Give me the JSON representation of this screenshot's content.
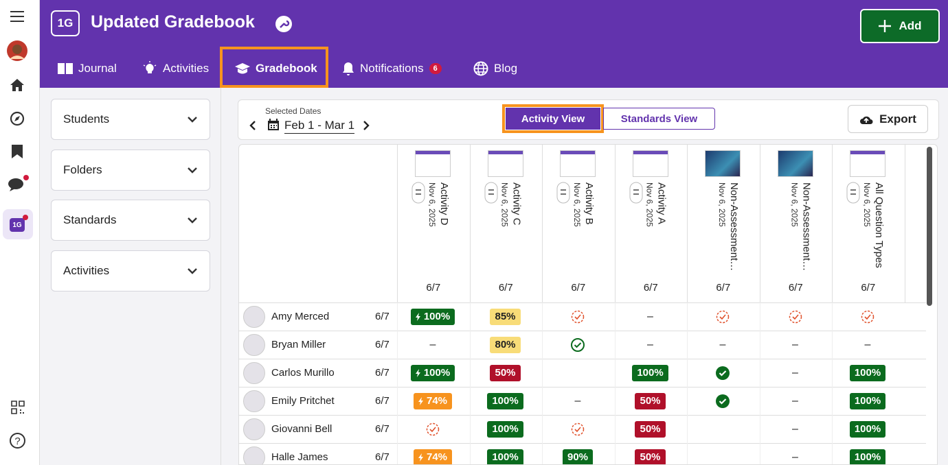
{
  "header": {
    "badge": "1G",
    "title": "Updated Gradebook",
    "add_button": "Add"
  },
  "nav": [
    {
      "label": "Journal"
    },
    {
      "label": "Activities"
    },
    {
      "label": "Gradebook"
    },
    {
      "label": "Notifications",
      "badge": 6
    },
    {
      "label": "Blog"
    }
  ],
  "rail": {
    "class_badge": "1G"
  },
  "filters": [
    "Students",
    "Folders",
    "Standards",
    "Activities"
  ],
  "toolbar": {
    "dates_label": "Selected Dates",
    "dates": "Feb 1 - Mar 1",
    "views": [
      "Activity View",
      "Standards View"
    ],
    "export": "Export"
  },
  "table": {
    "columns": [
      {
        "name": "Activity D",
        "date": "Nov 6, 2025",
        "score": "6/7"
      },
      {
        "name": "Activity C",
        "date": "Nov 6, 2025",
        "score": "6/7"
      },
      {
        "name": "Activity B",
        "date": "Nov 6, 2025",
        "score": "6/7"
      },
      {
        "name": "Activity A",
        "date": "Nov 6, 2025",
        "score": "6/7"
      },
      {
        "name": "Non-Assessment…",
        "date": "Nov 6, 2025",
        "score": "6/7"
      },
      {
        "name": "Non-Assessment…",
        "date": "Nov 6, 2025",
        "score": "6/7"
      },
      {
        "name": "All Question Types",
        "date": "Nov 6, 2025",
        "score": "6/7"
      }
    ],
    "rows": [
      {
        "name": "Amy Merced",
        "score": "6/7",
        "cells": [
          "100%",
          "85%",
          null,
          "–",
          null,
          null,
          null
        ]
      },
      {
        "name": "Bryan Miller",
        "score": "6/7",
        "cells": [
          "–",
          "80%",
          null,
          "–",
          "–",
          "–",
          "–"
        ]
      },
      {
        "name": "Carlos Murillo",
        "score": "6/7",
        "cells": [
          "100%",
          "50%",
          null,
          "100%",
          null,
          "–",
          "100%"
        ]
      },
      {
        "name": "Emily Pritchet",
        "score": "6/7",
        "cells": [
          "74%",
          "100%",
          "–",
          "50%",
          null,
          "–",
          "100%"
        ]
      },
      {
        "name": "Giovanni Bell",
        "score": "6/7",
        "cells": [
          null,
          "100%",
          null,
          "50%",
          null,
          "–",
          "100%"
        ]
      },
      {
        "name": "Halle James",
        "score": "6/7",
        "cells": [
          "74%",
          "100%",
          "90%",
          "50%",
          null,
          "–",
          "100%"
        ]
      }
    ]
  }
}
